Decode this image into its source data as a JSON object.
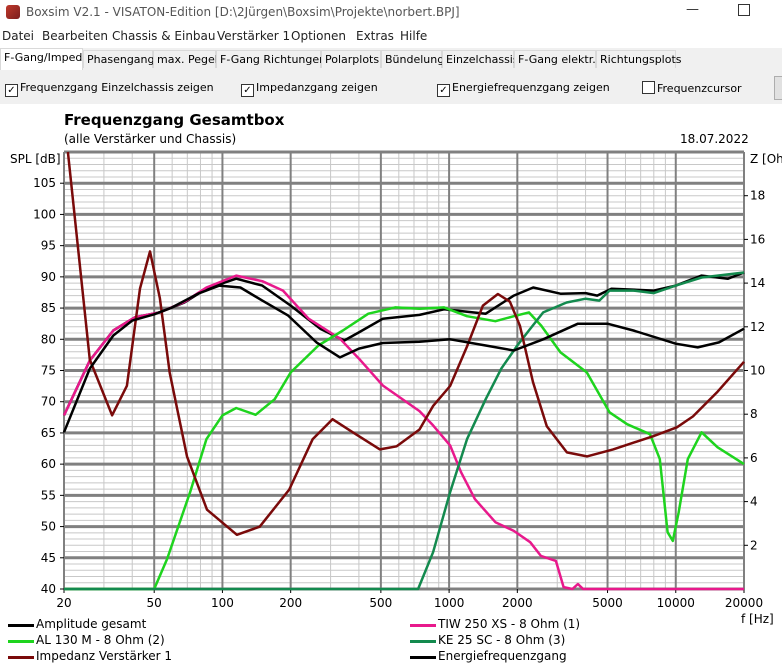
{
  "window": {
    "title": "Boxsim V2.1 - VISATON-Edition [D:\\2Jürgen\\Boxsim\\Projekte\\norbert.BPJ]",
    "minimize": "—"
  },
  "menu": [
    "Datei",
    "Bearbeiten",
    "Chassis & Einbau",
    "Verstärker 1",
    "Optionen",
    "Extras",
    "Hilfe"
  ],
  "tabs": [
    "F-Gang/Imped.",
    "Phasengang",
    "max. Pegel",
    "F-Gang Richtungen",
    "Polarplots",
    "Bündelung",
    "Einzelchassis",
    "F-Gang elektr.",
    "Richtungsplots"
  ],
  "active_tab": "F-Gang/Imped.",
  "options": [
    {
      "label": "Frequenzgang Einzelchassis zeigen",
      "checked": true
    },
    {
      "label": "Impedanzgang zeigen",
      "checked": true
    },
    {
      "label": "Energiefrequenzgang zeigen",
      "checked": true
    },
    {
      "label": "Frequenzcursor",
      "checked": false
    }
  ],
  "chart_data": {
    "type": "line",
    "title": "Frequenzgang Gesamtbox",
    "subtitle": "(alle Verstärker und Chassis)",
    "date": "18.07.2022",
    "ylabel": "SPL [dB]",
    "y2label": "Z [Oh",
    "xlabel": "f [Hz]",
    "xscale": "log",
    "xlim": [
      20,
      20000
    ],
    "ylim": [
      40,
      110
    ],
    "y2lim": [
      0,
      20
    ],
    "grid": true,
    "legend": "bottom",
    "xticks": [
      20,
      50,
      100,
      200,
      500,
      1000,
      2000,
      5000,
      10000,
      20000
    ],
    "yticks": [
      40,
      45,
      50,
      55,
      60,
      65,
      70,
      75,
      80,
      85,
      90,
      95,
      100,
      105
    ],
    "y2ticks": [
      2,
      4,
      6,
      8,
      10,
      12,
      14,
      16,
      18
    ],
    "series": [
      {
        "name": "Amplitude gesamt",
        "color": "#000000",
        "axis": "left",
        "x": [
          20,
          26,
          33,
          41,
          53,
          68,
          85,
          115,
          150,
          200,
          270,
          345,
          400,
          510,
          740,
          950,
          1450,
          1930,
          2350,
          3100,
          4000,
          4500,
          5200,
          8000,
          10000,
          13000,
          17000,
          20000
        ],
        "y": [
          67.8,
          76.6,
          81.4,
          83.5,
          84.3,
          85.9,
          88.1,
          89.7,
          88.6,
          85.4,
          81.7,
          79.8,
          81.1,
          83.3,
          83.9,
          84.8,
          84.1,
          87,
          88.3,
          87.3,
          87.4,
          87,
          88.1,
          87.8,
          88.6,
          90.2,
          89.7,
          90.7
        ]
      },
      {
        "name": "TIW 250 XS - 8 Ohm (1)",
        "color": "#e8198c",
        "axis": "left",
        "x": [
          20,
          26,
          33,
          41,
          53,
          68,
          85,
          115,
          150,
          185,
          240,
          330,
          400,
          510,
          740,
          850,
          1010,
          1130,
          1300,
          1600,
          1930,
          2280,
          2540,
          2960,
          3200,
          3500,
          3700,
          3900,
          20000
        ],
        "y": [
          67.8,
          76.6,
          81.4,
          83.5,
          84.3,
          86,
          88.3,
          90.2,
          89.3,
          87.8,
          83.3,
          80.1,
          76.9,
          72.6,
          68.5,
          66.2,
          63,
          58.7,
          54.4,
          50.7,
          49.3,
          47.5,
          45.3,
          44.5,
          40.3,
          40,
          40.8,
          40,
          40
        ]
      },
      {
        "name": "AL 130 M - 8 Ohm (2)",
        "color": "#1ed41e",
        "axis": "left",
        "x": [
          20,
          50,
          57,
          72,
          85,
          100,
          115,
          140,
          170,
          200,
          265,
          340,
          440,
          580,
          740,
          950,
          1200,
          1600,
          1930,
          2250,
          2550,
          3100,
          4050,
          5100,
          6100,
          7700,
          8500,
          9200,
          9700,
          10300,
          11300,
          13000,
          15300,
          20000
        ],
        "y": [
          40,
          40,
          44.8,
          55.5,
          64,
          67.8,
          69,
          67.9,
          70.4,
          74.7,
          79,
          81.4,
          84.1,
          85.1,
          84.9,
          85.1,
          83.7,
          82.9,
          83.7,
          84.3,
          82.2,
          77.9,
          74.7,
          68.3,
          66.4,
          64.8,
          60.8,
          49.1,
          47.7,
          52.3,
          60.8,
          65.1,
          62.7,
          60
        ]
      },
      {
        "name": "KE 25 SC - 8 Ohm    (3)",
        "color": "#138a4e",
        "axis": "left",
        "x": [
          20,
          730,
          850,
          1010,
          1200,
          1450,
          1700,
          2000,
          2250,
          2600,
          3300,
          4000,
          4600,
          5100,
          6500,
          8000,
          10000,
          13000,
          20000
        ],
        "y": [
          40,
          40,
          45.9,
          55.5,
          64,
          70.4,
          75.3,
          79,
          81.4,
          84.3,
          85.9,
          86.5,
          86.2,
          87.8,
          87.8,
          87.4,
          88.6,
          89.9,
          90.7
        ]
      },
      {
        "name": "Impedanz Verstärker 1",
        "color": "#7a0a0a",
        "axis": "right",
        "x": [
          20.8,
          26,
          32.6,
          37.9,
          43.3,
          47.9,
          53,
          58.5,
          69.8,
          85.5,
          115.8,
          146,
          197,
          250,
          306,
          376,
          495,
          587,
          740,
          849,
          1010,
          1199,
          1410,
          1641,
          1854,
          2052,
          2344,
          2698,
          3310,
          4055,
          5290,
          7930,
          10120,
          11910,
          15180,
          20000
        ],
        "y": [
          20,
          10.5,
          7.95,
          9.3,
          13.75,
          15.45,
          13.3,
          9.9,
          6.07,
          3.63,
          2.48,
          2.85,
          4.55,
          6.85,
          7.77,
          7.17,
          6.39,
          6.53,
          7.3,
          8.37,
          9.29,
          11.1,
          12.97,
          13.5,
          13.15,
          12.05,
          9.47,
          7.45,
          6.25,
          6.07,
          6.39,
          6.99,
          7.4,
          7.9,
          9.0,
          10.4
        ]
      },
      {
        "name": "Energiefrequenzgang",
        "color": "#000000",
        "axis": "left",
        "x": [
          20,
          26,
          33,
          40,
          50,
          60,
          78,
          97,
          120,
          150,
          195,
          260,
          330,
          400,
          510,
          740,
          1010,
          1450,
          1930,
          2600,
          3700,
          5000,
          6500,
          10000,
          12500,
          15500,
          20000
        ],
        "y": [
          65.1,
          75.3,
          80.6,
          83,
          84,
          85.1,
          87.3,
          88.6,
          88.3,
          86.2,
          83.8,
          79.5,
          77.1,
          78.5,
          79.4,
          79.6,
          80,
          79,
          78.2,
          80,
          82.5,
          82.5,
          81.4,
          79.3,
          78.7,
          79.5,
          81.7
        ]
      }
    ]
  }
}
